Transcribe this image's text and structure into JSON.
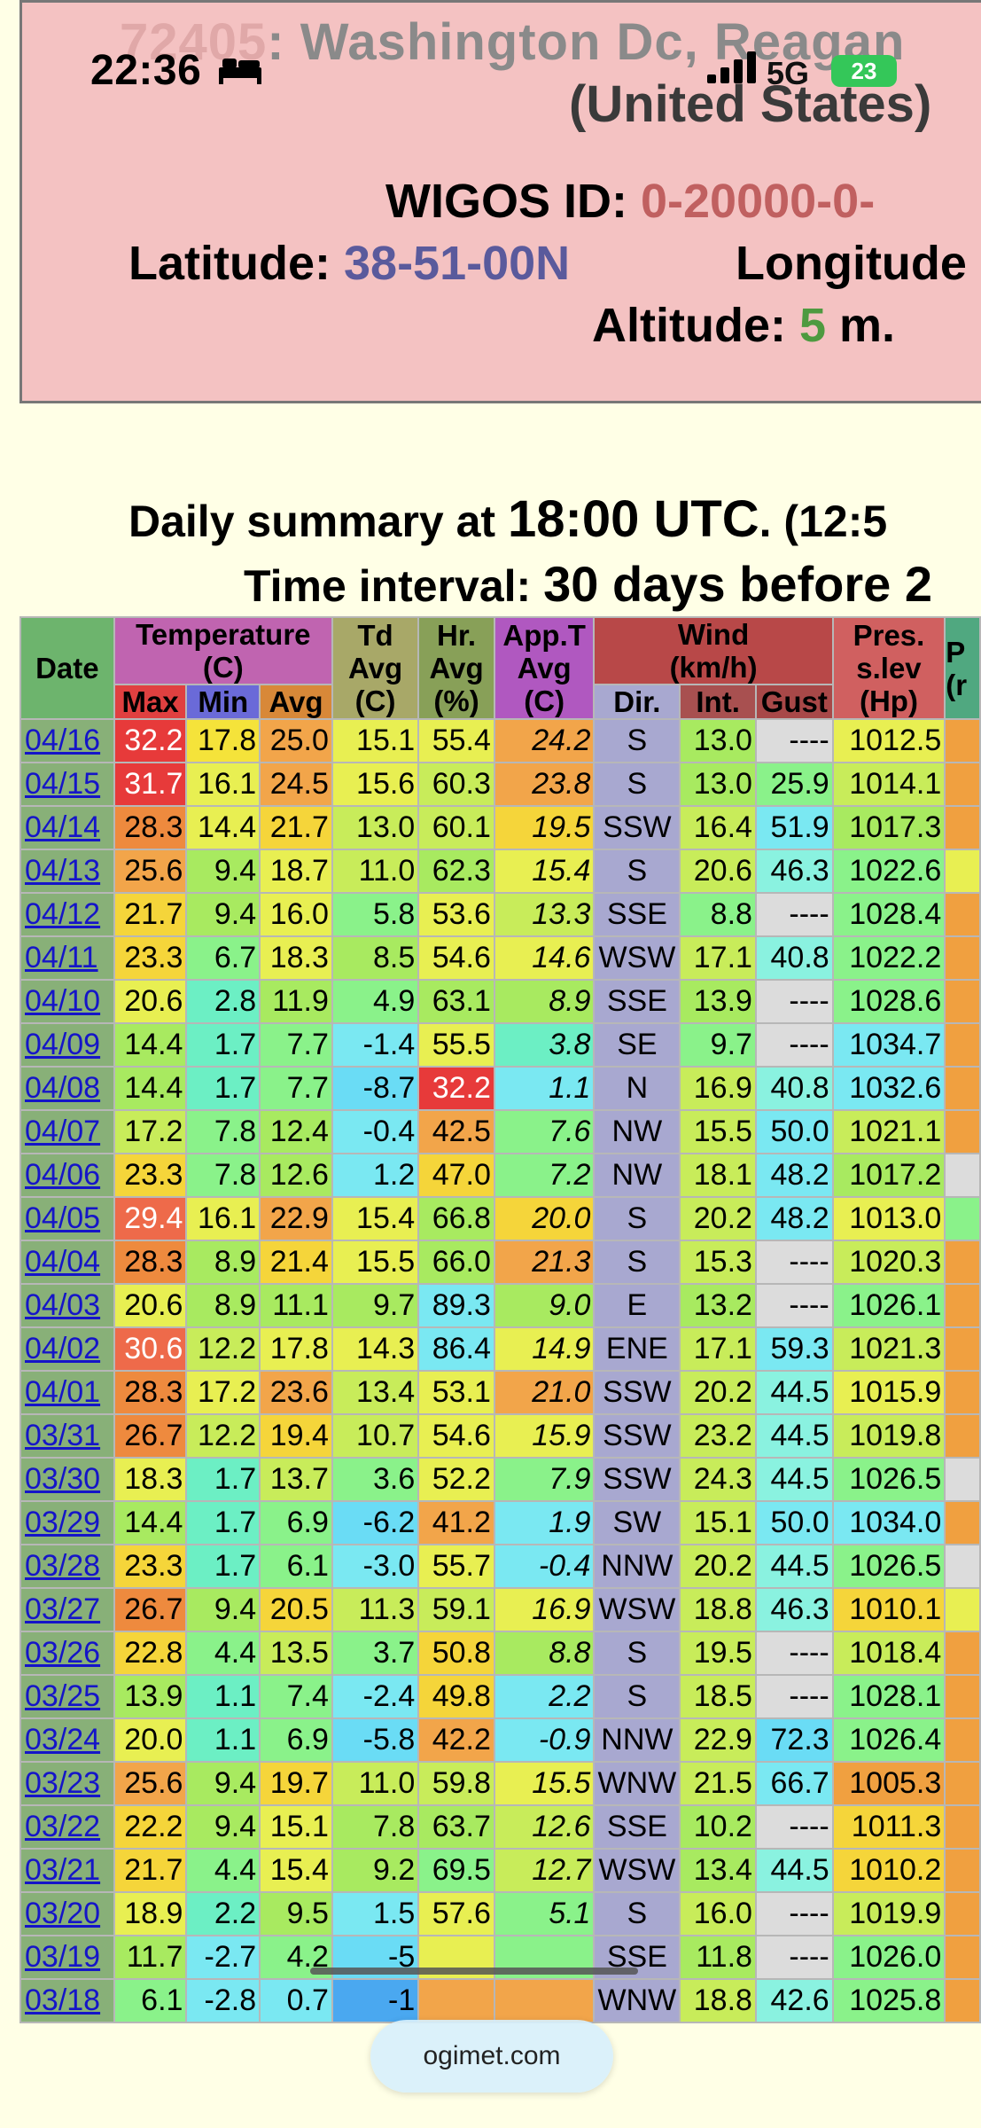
{
  "status_bar": {
    "time": "22:36",
    "network": "5G",
    "battery": "23"
  },
  "station": {
    "title_line1_code": "72405",
    "title_line1_rest": ":   Washington Dc, Reagan",
    "title_line2": "(United States)",
    "wigos_label": "WIGOS ID:",
    "wigos_value": "0-20000-0-",
    "lat_label": "Latitude:",
    "lat_value": "38-51-00N",
    "lon_label": "Longitude",
    "alt_label": "Altitude:",
    "alt_value": "5",
    "alt_unit": "m."
  },
  "summary": {
    "line1_pre": "Daily summary at ",
    "line1_time": "18:00 UTC",
    "line1_post": ". (12:5",
    "line2_pre": "Time interval: ",
    "line2_big": "30 days before 2"
  },
  "table": {
    "headers": {
      "date": "Date",
      "temperature": "Temperature",
      "temperature_unit": "(C)",
      "max": "Max",
      "min": "Min",
      "avg": "Avg",
      "td": "Td",
      "td_avg": "Avg",
      "td_unit": "(C)",
      "hr": "Hr.",
      "hr_avg": "Avg",
      "hr_unit": "(%)",
      "app": "App.T",
      "app_avg": "Avg",
      "app_unit": "(C)",
      "wind": "Wind",
      "wind_unit": "(km/h)",
      "dir": "Dir.",
      "int": "Int.",
      "gust": "Gust",
      "pres": "Pres.",
      "pres_lev": "s.lev",
      "pres_unit": "(Hp)",
      "extra": "P",
      "extra_unit": "(r"
    },
    "rows": [
      {
        "date": "04/16",
        "max": "32.2",
        "min": "17.8",
        "avg": "25.0",
        "td": "15.1",
        "hr": "55.4",
        "app": "24.2",
        "dir": "S",
        "int": "13.0",
        "gust": "----",
        "pres": "1012.5",
        "c": [
          "#E73A3A",
          "#F5E33A",
          "#F2A54A",
          "#E8EF52",
          "#E8EF52",
          "#F2A54A",
          "#A8A8D0",
          "#A8EA60",
          "#DCDCDC",
          "#E8EF52",
          "#F0A040"
        ]
      },
      {
        "date": "04/15",
        "max": "31.7",
        "min": "16.1",
        "avg": "24.5",
        "td": "15.6",
        "hr": "60.3",
        "app": "23.8",
        "dir": "S",
        "int": "13.0",
        "gust": "25.9",
        "pres": "1014.1",
        "c": [
          "#E73A3A",
          "#E8EF52",
          "#F2A54A",
          "#E8EF52",
          "#C8EC5A",
          "#F2A54A",
          "#A8A8D0",
          "#A8EA60",
          "#8AF28A",
          "#C8EC5A",
          "#F0A040"
        ]
      },
      {
        "date": "04/14",
        "max": "28.3",
        "min": "14.4",
        "avg": "21.7",
        "td": "13.0",
        "hr": "60.1",
        "app": "19.5",
        "dir": "SSW",
        "int": "16.4",
        "gust": "51.9",
        "pres": "1017.3",
        "c": [
          "#EE8A3E",
          "#E8EF52",
          "#F5D53A",
          "#C8EC5A",
          "#C8EC5A",
          "#F5D53A",
          "#A8A8D0",
          "#C8EC5A",
          "#7AE8F2",
          "#A8EA60",
          "#F0A040"
        ]
      },
      {
        "date": "04/13",
        "max": "25.6",
        "min": "9.4",
        "avg": "18.7",
        "td": "11.0",
        "hr": "62.3",
        "app": "15.4",
        "dir": "S",
        "int": "20.6",
        "gust": "46.3",
        "pres": "1022.6",
        "c": [
          "#F2A54A",
          "#A8EA60",
          "#E8EF52",
          "#C8EC5A",
          "#A8EA60",
          "#E8EF52",
          "#A8A8D0",
          "#C8EC5A",
          "#8AF2E0",
          "#8AF28A",
          "#E8EF52"
        ]
      },
      {
        "date": "04/12",
        "max": "21.7",
        "min": "9.4",
        "avg": "16.0",
        "td": "5.8",
        "hr": "53.6",
        "app": "13.3",
        "dir": "SSE",
        "int": "8.8",
        "gust": "----",
        "pres": "1028.4",
        "c": [
          "#F5D53A",
          "#A8EA60",
          "#E8EF52",
          "#8AF28A",
          "#E8EF52",
          "#C8EC5A",
          "#A8A8D0",
          "#8AF28A",
          "#DCDCDC",
          "#8AF28A",
          "#F0A040"
        ]
      },
      {
        "date": "04/11",
        "max": "23.3",
        "min": "6.7",
        "avg": "18.3",
        "td": "8.5",
        "hr": "54.6",
        "app": "14.6",
        "dir": "WSW",
        "int": "17.1",
        "gust": "40.8",
        "pres": "1022.2",
        "c": [
          "#F5D53A",
          "#8AF28A",
          "#E8EF52",
          "#A8EA60",
          "#E8EF52",
          "#E8EF52",
          "#A8A8D0",
          "#C8EC5A",
          "#8AF2E0",
          "#8AF28A",
          "#F0A040"
        ]
      },
      {
        "date": "04/10",
        "max": "20.6",
        "min": "2.8",
        "avg": "11.9",
        "td": "4.9",
        "hr": "63.1",
        "app": "8.9",
        "dir": "SSE",
        "int": "13.9",
        "gust": "----",
        "pres": "1028.6",
        "c": [
          "#E8EF52",
          "#6CEFC4",
          "#A8EA60",
          "#8AF28A",
          "#A8EA60",
          "#A8EA60",
          "#A8A8D0",
          "#A8EA60",
          "#DCDCDC",
          "#8AF28A",
          "#F0A040"
        ]
      },
      {
        "date": "04/09",
        "max": "14.4",
        "min": "1.7",
        "avg": "7.7",
        "td": "-1.4",
        "hr": "55.5",
        "app": "3.8",
        "dir": "SE",
        "int": "9.7",
        "gust": "----",
        "pres": "1034.7",
        "c": [
          "#A8EA60",
          "#6CEFC4",
          "#8AF28A",
          "#7AE8F2",
          "#E8EF52",
          "#6CEFC4",
          "#A8A8D0",
          "#8AF28A",
          "#DCDCDC",
          "#7AE8F2",
          "#F0A040"
        ]
      },
      {
        "date": "04/08",
        "max": "14.4",
        "min": "1.7",
        "avg": "7.7",
        "td": "-8.7",
        "hr": "32.2",
        "app": "1.1",
        "dir": "N",
        "int": "16.9",
        "gust": "40.8",
        "pres": "1032.6",
        "c": [
          "#A8EA60",
          "#6CEFC4",
          "#8AF28A",
          "#6ADCF5",
          "#E73A3A",
          "#7AE8F2",
          "#A8A8D0",
          "#C8EC5A",
          "#8AF2E0",
          "#7AE8F2",
          "#F0A040"
        ]
      },
      {
        "date": "04/07",
        "max": "17.2",
        "min": "7.8",
        "avg": "12.4",
        "td": "-0.4",
        "hr": "42.5",
        "app": "7.6",
        "dir": "NW",
        "int": "15.5",
        "gust": "50.0",
        "pres": "1021.1",
        "c": [
          "#C8EC5A",
          "#8AF28A",
          "#A8EA60",
          "#7AE8F2",
          "#F2A54A",
          "#8AF28A",
          "#A8A8D0",
          "#C8EC5A",
          "#7AE8F2",
          "#C8EC5A",
          "#F0A040"
        ]
      },
      {
        "date": "04/06",
        "max": "23.3",
        "min": "7.8",
        "avg": "12.6",
        "td": "1.2",
        "hr": "47.0",
        "app": "7.2",
        "dir": "NW",
        "int": "18.1",
        "gust": "48.2",
        "pres": "1017.2",
        "c": [
          "#F5D53A",
          "#8AF28A",
          "#A8EA60",
          "#7AE8F2",
          "#F5D53A",
          "#8AF28A",
          "#A8A8D0",
          "#C8EC5A",
          "#7AE8F2",
          "#A8EA60",
          "#DCDCDC"
        ]
      },
      {
        "date": "04/05",
        "max": "29.4",
        "min": "16.1",
        "avg": "22.9",
        "td": "15.4",
        "hr": "66.8",
        "app": "20.0",
        "dir": "S",
        "int": "20.2",
        "gust": "48.2",
        "pres": "1013.0",
        "c": [
          "#EE6A4A",
          "#E8EF52",
          "#F2A54A",
          "#E8EF52",
          "#A8EA60",
          "#F5D53A",
          "#A8A8D0",
          "#C8EC5A",
          "#7AE8F2",
          "#E8EF52",
          "#8AF28A"
        ]
      },
      {
        "date": "04/04",
        "max": "28.3",
        "min": "8.9",
        "avg": "21.4",
        "td": "15.5",
        "hr": "66.0",
        "app": "21.3",
        "dir": "S",
        "int": "15.3",
        "gust": "----",
        "pres": "1020.3",
        "c": [
          "#EE8A3E",
          "#A8EA60",
          "#F5D53A",
          "#E8EF52",
          "#A8EA60",
          "#F2A54A",
          "#A8A8D0",
          "#C8EC5A",
          "#DCDCDC",
          "#C8EC5A",
          "#F0A040"
        ]
      },
      {
        "date": "04/03",
        "max": "20.6",
        "min": "8.9",
        "avg": "11.1",
        "td": "9.7",
        "hr": "89.3",
        "app": "9.0",
        "dir": "E",
        "int": "13.2",
        "gust": "----",
        "pres": "1026.1",
        "c": [
          "#E8EF52",
          "#A8EA60",
          "#A8EA60",
          "#A8EA60",
          "#7AE8F2",
          "#A8EA60",
          "#A8A8D0",
          "#A8EA60",
          "#DCDCDC",
          "#8AF28A",
          "#F0A040"
        ]
      },
      {
        "date": "04/02",
        "max": "30.6",
        "min": "12.2",
        "avg": "17.8",
        "td": "14.3",
        "hr": "86.4",
        "app": "14.9",
        "dir": "ENE",
        "int": "17.1",
        "gust": "59.3",
        "pres": "1021.3",
        "c": [
          "#EE6A4A",
          "#C8EC5A",
          "#E8EF52",
          "#E8EF52",
          "#7AE8F2",
          "#E8EF52",
          "#A8A8D0",
          "#C8EC5A",
          "#7AE8F2",
          "#C8EC5A",
          "#F0A040"
        ]
      },
      {
        "date": "04/01",
        "max": "28.3",
        "min": "17.2",
        "avg": "23.6",
        "td": "13.4",
        "hr": "53.1",
        "app": "21.0",
        "dir": "SSW",
        "int": "20.2",
        "gust": "44.5",
        "pres": "1015.9",
        "c": [
          "#EE8A3E",
          "#E8EF52",
          "#F2A54A",
          "#C8EC5A",
          "#E8EF52",
          "#F2A54A",
          "#A8A8D0",
          "#C8EC5A",
          "#8AF2E0",
          "#E8EF52",
          "#F0A040"
        ]
      },
      {
        "date": "03/31",
        "max": "26.7",
        "min": "12.2",
        "avg": "19.4",
        "td": "10.7",
        "hr": "54.6",
        "app": "15.9",
        "dir": "SSW",
        "int": "23.2",
        "gust": "44.5",
        "pres": "1019.8",
        "c": [
          "#EE8A3E",
          "#C8EC5A",
          "#F5D53A",
          "#C8EC5A",
          "#E8EF52",
          "#E8EF52",
          "#A8A8D0",
          "#C8EC5A",
          "#8AF2E0",
          "#C8EC5A",
          "#F0A040"
        ]
      },
      {
        "date": "03/30",
        "max": "18.3",
        "min": "1.7",
        "avg": "13.7",
        "td": "3.6",
        "hr": "52.2",
        "app": "7.9",
        "dir": "SSW",
        "int": "24.3",
        "gust": "44.5",
        "pres": "1026.5",
        "c": [
          "#E8EF52",
          "#6CEFC4",
          "#C8EC5A",
          "#8AF28A",
          "#E8EF52",
          "#8AF28A",
          "#A8A8D0",
          "#C8EC5A",
          "#8AF2E0",
          "#8AF28A",
          "#DCDCDC"
        ]
      },
      {
        "date": "03/29",
        "max": "14.4",
        "min": "1.7",
        "avg": "6.9",
        "td": "-6.2",
        "hr": "41.2",
        "app": "1.9",
        "dir": "SW",
        "int": "15.1",
        "gust": "50.0",
        "pres": "1034.0",
        "c": [
          "#A8EA60",
          "#6CEFC4",
          "#8AF28A",
          "#6ADCF5",
          "#F2A54A",
          "#7AE8F2",
          "#A8A8D0",
          "#C8EC5A",
          "#7AE8F2",
          "#7AE8F2",
          "#F0A040"
        ]
      },
      {
        "date": "03/28",
        "max": "23.3",
        "min": "1.7",
        "avg": "6.1",
        "td": "-3.0",
        "hr": "55.7",
        "app": "-0.4",
        "dir": "NNW",
        "int": "20.2",
        "gust": "44.5",
        "pres": "1026.5",
        "c": [
          "#F5D53A",
          "#6CEFC4",
          "#8AF28A",
          "#7AE8F2",
          "#E8EF52",
          "#7AE8F2",
          "#A8A8D0",
          "#C8EC5A",
          "#8AF2E0",
          "#8AF28A",
          "#DCDCDC"
        ]
      },
      {
        "date": "03/27",
        "max": "26.7",
        "min": "9.4",
        "avg": "20.5",
        "td": "11.3",
        "hr": "59.1",
        "app": "16.9",
        "dir": "WSW",
        "int": "18.8",
        "gust": "46.3",
        "pres": "1010.1",
        "c": [
          "#EE8A3E",
          "#A8EA60",
          "#F5D53A",
          "#C8EC5A",
          "#C8EC5A",
          "#E8EF52",
          "#A8A8D0",
          "#C8EC5A",
          "#8AF2E0",
          "#F5D53A",
          "#E8EF52"
        ]
      },
      {
        "date": "03/26",
        "max": "22.8",
        "min": "4.4",
        "avg": "13.5",
        "td": "3.7",
        "hr": "50.8",
        "app": "8.8",
        "dir": "S",
        "int": "19.5",
        "gust": "----",
        "pres": "1018.4",
        "c": [
          "#F5D53A",
          "#8AF28A",
          "#C8EC5A",
          "#8AF28A",
          "#F5D53A",
          "#A8EA60",
          "#A8A8D0",
          "#C8EC5A",
          "#DCDCDC",
          "#C8EC5A",
          "#F0A040"
        ]
      },
      {
        "date": "03/25",
        "max": "13.9",
        "min": "1.1",
        "avg": "7.4",
        "td": "-2.4",
        "hr": "49.8",
        "app": "2.2",
        "dir": "S",
        "int": "18.5",
        "gust": "----",
        "pres": "1028.1",
        "c": [
          "#A8EA60",
          "#6CEFC4",
          "#8AF28A",
          "#7AE8F2",
          "#F5D53A",
          "#7AE8F2",
          "#A8A8D0",
          "#C8EC5A",
          "#DCDCDC",
          "#8AF28A",
          "#F0A040"
        ]
      },
      {
        "date": "03/24",
        "max": "20.0",
        "min": "1.1",
        "avg": "6.9",
        "td": "-5.8",
        "hr": "42.2",
        "app": "-0.9",
        "dir": "NNW",
        "int": "22.9",
        "gust": "72.3",
        "pres": "1026.4",
        "c": [
          "#E8EF52",
          "#6CEFC4",
          "#8AF28A",
          "#6ADCF5",
          "#F2A54A",
          "#7AE8F2",
          "#A8A8D0",
          "#C8EC5A",
          "#6ADCF5",
          "#8AF28A",
          "#F0A040"
        ]
      },
      {
        "date": "03/23",
        "max": "25.6",
        "min": "9.4",
        "avg": "19.7",
        "td": "11.0",
        "hr": "59.8",
        "app": "15.5",
        "dir": "WNW",
        "int": "21.5",
        "gust": "66.7",
        "pres": "1005.3",
        "c": [
          "#F2A54A",
          "#A8EA60",
          "#F5D53A",
          "#C8EC5A",
          "#C8EC5A",
          "#E8EF52",
          "#A8A8D0",
          "#C8EC5A",
          "#7AE8F2",
          "#F0A040",
          "#F0A040"
        ]
      },
      {
        "date": "03/22",
        "max": "22.2",
        "min": "9.4",
        "avg": "15.1",
        "td": "7.8",
        "hr": "63.7",
        "app": "12.6",
        "dir": "SSE",
        "int": "10.2",
        "gust": "----",
        "pres": "1011.3",
        "c": [
          "#F5D53A",
          "#A8EA60",
          "#E8EF52",
          "#A8EA60",
          "#A8EA60",
          "#C8EC5A",
          "#A8A8D0",
          "#A8EA60",
          "#DCDCDC",
          "#F5D53A",
          "#F0A040"
        ]
      },
      {
        "date": "03/21",
        "max": "21.7",
        "min": "4.4",
        "avg": "15.4",
        "td": "9.2",
        "hr": "69.5",
        "app": "12.7",
        "dir": "WSW",
        "int": "13.4",
        "gust": "44.5",
        "pres": "1010.2",
        "c": [
          "#F5D53A",
          "#8AF28A",
          "#E8EF52",
          "#A8EA60",
          "#8AF28A",
          "#C8EC5A",
          "#A8A8D0",
          "#A8EA60",
          "#8AF2E0",
          "#F5D53A",
          "#F0A040"
        ]
      },
      {
        "date": "03/20",
        "max": "18.9",
        "min": "2.2",
        "avg": "9.5",
        "td": "1.5",
        "hr": "57.6",
        "app": "5.1",
        "dir": "S",
        "int": "16.0",
        "gust": "----",
        "pres": "1019.9",
        "c": [
          "#E8EF52",
          "#6CEFC4",
          "#A8EA60",
          "#7AE8F2",
          "#E8EF52",
          "#8AF28A",
          "#A8A8D0",
          "#C8EC5A",
          "#DCDCDC",
          "#C8EC5A",
          "#F0A040"
        ]
      },
      {
        "date": "03/19",
        "max": "11.7",
        "min": "-2.7",
        "avg": "4.2",
        "td": "-5",
        "hr": "",
        "app": "",
        "dir": "SSE",
        "int": "11.8",
        "gust": "----",
        "pres": "1026.0",
        "c": [
          "#A8EA60",
          "#7AE8F2",
          "#8AF28A",
          "#6ADCF5",
          "#E8EF52",
          "#8AF28A",
          "#A8A8D0",
          "#A8EA60",
          "#DCDCDC",
          "#8AF28A",
          "#F0A040"
        ]
      },
      {
        "date": "03/18",
        "max": "6.1",
        "min": "-2.8",
        "avg": "0.7",
        "td": "-1",
        "hr": "",
        "app": "",
        "dir": "WNW",
        "int": "18.8",
        "gust": "42.6",
        "pres": "1025.8",
        "c": [
          "#8AF28A",
          "#7AE8F2",
          "#7AE8F2",
          "#4AA8F0",
          "#F2A54A",
          "#F2A54A",
          "#A8A8D0",
          "#C8EC5A",
          "#8AF2E0",
          "#8AF28A",
          "#F0A040"
        ]
      }
    ]
  },
  "url_pill": {
    "label": "ogimet.com"
  }
}
